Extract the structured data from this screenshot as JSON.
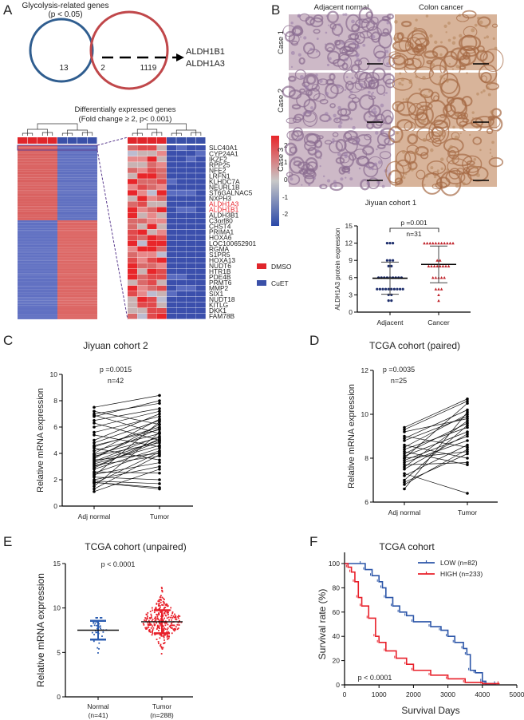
{
  "panel_labels": [
    "A",
    "B",
    "C",
    "D",
    "E",
    "F"
  ],
  "colors": {
    "blue": "#2b5797",
    "red": "#e31e24",
    "venn_blue": "#2f5d8f",
    "venn_red": "#c0474a",
    "heat_red": "#e0262b",
    "heat_blue": "#3a50a8",
    "purple": "#5b3c8f",
    "dark_navy": "#1d2d6b",
    "triangle_red": "#c0222a"
  },
  "panelA": {
    "venn_title": "Glycolysis-related genes",
    "venn_subtitle": "(p < 0.05)",
    "left_only": "13",
    "overlap": "2",
    "right_only": "1119",
    "arrow_genes": [
      "ALDH1B1",
      "ALDH1A3"
    ],
    "heatmap_title": "Differentially expressed genes",
    "heatmap_subtitle": "(Fold change ≥ 2, p< 0.001)",
    "genes": [
      "SLC40A1",
      "CYP24A1",
      "IKZF2",
      "RPP25",
      "NFE2",
      "LRFN1",
      "KLHDC7A",
      "NEURL1B",
      "ST6GALNAC5",
      "NXPH3",
      "ALDH1A3",
      "ALDH1B1",
      "ALDH3B1",
      "C3orf80",
      "CHST4",
      "PRIMA1",
      "HOXA6",
      "LOC100652901",
      "RGMA",
      "S1PR5",
      "HOXA13",
      "NUDT6",
      "HTR1B",
      "PDE4B",
      "PRMT6",
      "MMP2",
      "SIX1",
      "NUDT18",
      "KITLG",
      "DKK1",
      "FAM78B"
    ],
    "highlighted_genes": [
      "ALDH1A3",
      "ALDH1B1"
    ],
    "colorbar_ticks": [
      "2",
      "1",
      "0",
      "-1",
      "-2"
    ],
    "legend": [
      {
        "label": "DMSO",
        "color": "#e0262b"
      },
      {
        "label": "CuET",
        "color": "#3a50a8"
      }
    ]
  },
  "panelB": {
    "col_headers": [
      "Adjacent normal",
      "Colon cancer"
    ],
    "row_labels": [
      "Case 1",
      "Case 2",
      "Case 3"
    ]
  },
  "chart_data": [
    {
      "id": "B-scatter",
      "type": "scatter",
      "title": "Jiyuan cohort 1",
      "ylabel": "ALDH1A3 protein expression",
      "categories": [
        "Adjacent",
        "Cancer"
      ],
      "ylim": [
        0,
        15
      ],
      "yticks": [
        "0",
        "3",
        "6",
        "9",
        "12",
        "15"
      ],
      "annotation_p": "p =0.001",
      "annotation_n": "n=31",
      "series": [
        {
          "name": "Adjacent",
          "marker": "circle",
          "color": "#1d2d6b",
          "value_counts": {
            "12": 3,
            "9": 3,
            "8": 2,
            "6": 9,
            "4": 10,
            "3": 2,
            "2": 2
          },
          "mean": 5.9,
          "sd": 2.8
        },
        {
          "name": "Cancer",
          "marker": "triangle",
          "color": "#c0222a",
          "value_counts": {
            "12": 11,
            "9": 2,
            "8": 8,
            "6": 5,
            "4": 3,
            "3": 1,
            "2": 1
          },
          "mean": 8.3,
          "sd": 3.2
        }
      ]
    },
    {
      "id": "C-paired",
      "type": "line",
      "title": "Jiyuan cohort 2",
      "ylabel": "Relative mRNA expression",
      "categories": [
        "Adj normal",
        "Tumor"
      ],
      "ylim": [
        0,
        10
      ],
      "yticks": [
        "0",
        "2",
        "4",
        "6",
        "8",
        "10"
      ],
      "annotation_p": "p =0.0015",
      "annotation_n": "n=42",
      "adj": [
        7.5,
        7.2,
        7.0,
        6.9,
        6.8,
        6.5,
        6.3,
        6.0,
        5.6,
        5.4,
        5.0,
        4.8,
        4.6,
        4.5,
        4.4,
        4.2,
        4.0,
        3.9,
        3.8,
        3.7,
        3.6,
        3.5,
        3.4,
        3.3,
        3.2,
        3.1,
        3.0,
        2.9,
        2.8,
        2.6,
        2.5,
        2.4,
        2.3,
        2.2,
        2.0,
        1.9,
        1.8,
        1.8,
        1.7,
        1.5,
        1.3,
        1.1
      ],
      "tumor": [
        8.4,
        6.2,
        7.8,
        5.5,
        8.0,
        7.4,
        5.0,
        7.2,
        6.8,
        4.5,
        7.0,
        6.5,
        5.8,
        6.0,
        3.5,
        5.5,
        6.6,
        5.2,
        4.8,
        5.9,
        6.2,
        4.0,
        5.3,
        5.0,
        4.6,
        3.8,
        4.9,
        5.1,
        4.4,
        2.5,
        4.2,
        3.3,
        6.4,
        2.0,
        3.0,
        1.7,
        1.4,
        1.3,
        4.1,
        5.6,
        3.9,
        2.8
      ]
    },
    {
      "id": "D-paired",
      "type": "line",
      "title": "TCGA  cohort (paired)",
      "ylabel": "Relative mRNA expression",
      "categories": [
        "Adj normal",
        "Tumor"
      ],
      "ylim": [
        6,
        12
      ],
      "yticks": [
        "6",
        "8",
        "10",
        "12"
      ],
      "annotation_p": "p =0.0035",
      "annotation_n": "n=25",
      "adj": [
        9.4,
        9.3,
        9.2,
        9.0,
        8.9,
        8.8,
        8.6,
        8.5,
        8.4,
        8.3,
        8.2,
        8.1,
        8.0,
        8.0,
        7.9,
        7.8,
        7.7,
        7.6,
        7.5,
        7.3,
        7.2,
        7.0,
        6.9,
        6.8,
        6.6
      ],
      "tumor": [
        10.7,
        10.6,
        9.8,
        8.5,
        10.2,
        9.9,
        8.0,
        10.0,
        9.4,
        7.7,
        9.6,
        9.2,
        8.3,
        10.5,
        9.0,
        8.8,
        7.8,
        9.7,
        9.1,
        6.4,
        8.6,
        9.5,
        8.2,
        8.4,
        10.1
      ]
    },
    {
      "id": "E-unpaired",
      "type": "scatter",
      "title": "TCGA  cohort (unpaired)",
      "ylabel": "Relative mRNA expression",
      "categories": [
        "Normal",
        "Tumor"
      ],
      "category_n": [
        "(n=41)",
        "(n=288)"
      ],
      "ylim": [
        0,
        15
      ],
      "yticks": [
        "0",
        "5",
        "10",
        "15"
      ],
      "annotation_p": "p < 0.0001",
      "series": [
        {
          "name": "Normal",
          "n": 41,
          "mean": 7.5,
          "sd": 1.05,
          "min": 4.3,
          "max": 8.9,
          "color": "#2b5cb0"
        },
        {
          "name": "Tumor",
          "n": 288,
          "mean": 8.45,
          "sd": 1.3,
          "min": 4.3,
          "max": 12.3,
          "color": "#e8202a"
        }
      ]
    },
    {
      "id": "F-survival",
      "type": "line",
      "title": "TCGA cohort",
      "xlabel": "Survival Days",
      "ylabel": "Survival rate (%)",
      "xlim": [
        0,
        5000
      ],
      "ylim": [
        0,
        100
      ],
      "xticks": [
        "0",
        "1000",
        "2000",
        "3000",
        "4000",
        "5000"
      ],
      "yticks": [
        "0",
        "20",
        "40",
        "60",
        "80",
        "100"
      ],
      "annotation_p": "p < 0.0001",
      "legend_position": "top-right",
      "series": [
        {
          "name": "LOW (n=82)",
          "color": "#2b55a8",
          "x": [
            0,
            500,
            600,
            800,
            1000,
            1100,
            1200,
            1400,
            1600,
            1800,
            2000,
            2500,
            2800,
            3000,
            3200,
            3450,
            3550,
            3650,
            3800,
            4000,
            4100,
            4400
          ],
          "y": [
            100,
            100,
            95,
            90,
            85,
            80,
            72,
            65,
            60,
            57,
            52,
            48,
            45,
            40,
            35,
            30,
            25,
            12,
            10,
            3,
            1,
            1
          ]
        },
        {
          "name": "HIGH (n=233)",
          "color": "#e8202a",
          "x": [
            0,
            100,
            200,
            300,
            400,
            500,
            700,
            900,
            1000,
            1200,
            1500,
            1800,
            2000,
            2500,
            3000,
            3500,
            4000,
            4500
          ],
          "y": [
            100,
            97,
            93,
            85,
            72,
            65,
            55,
            40,
            35,
            28,
            22,
            17,
            12,
            8,
            5,
            2,
            1,
            1
          ]
        }
      ]
    }
  ]
}
